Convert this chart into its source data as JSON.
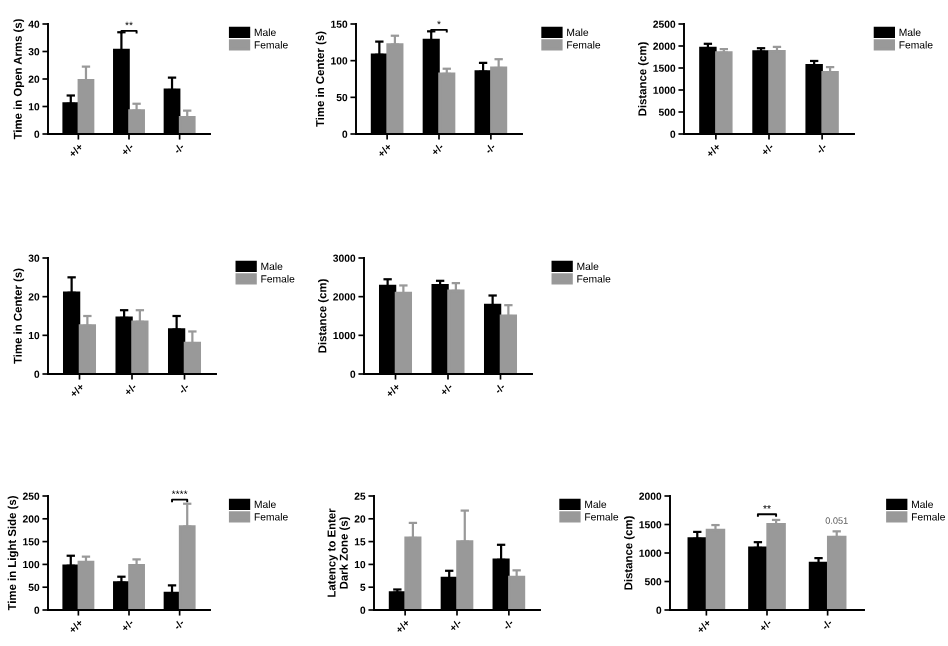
{
  "chart_data": [
    {
      "type": "bar",
      "ylabel": "Time in Open Arms (s)",
      "categories": [
        "+/+",
        "+/-",
        "-/-"
      ],
      "ylim": [
        0,
        40
      ],
      "yticks": [
        0,
        10,
        20,
        30,
        40
      ],
      "legend": "top right",
      "grid": false,
      "annotations": [
        {
          "text": "**",
          "x": "+/-",
          "y": 37.5
        }
      ],
      "series": [
        {
          "name": "Male",
          "color": "#000000",
          "values": [
            11,
            30.5,
            16
          ],
          "errors": [
            [
              11,
              14
            ],
            [
              30.5,
              37
            ],
            [
              16,
              20.5
            ]
          ]
        },
        {
          "name": "Female",
          "color": "#999999",
          "values": [
            19.5,
            8.5,
            6
          ],
          "errors": [
            [
              19.5,
              24.5
            ],
            [
              8.5,
              11
            ],
            [
              6,
              8.5
            ]
          ]
        }
      ]
    },
    {
      "type": "bar",
      "ylabel": "Time in Center (s)",
      "categories": [
        "+/+",
        "+/-",
        "-/-"
      ],
      "ylim": [
        0,
        150
      ],
      "yticks": [
        0,
        50,
        100,
        150
      ],
      "legend": "top right",
      "grid": false,
      "annotations": [
        {
          "text": "*",
          "x": "+/-",
          "y": 142
        }
      ],
      "series": [
        {
          "name": "Male",
          "color": "#000000",
          "values": [
            108,
            128,
            85
          ],
          "errors": [
            [
              108,
              126
            ],
            [
              128,
              140
            ],
            [
              85,
              97
            ]
          ]
        },
        {
          "name": "Female",
          "color": "#999999",
          "values": [
            122,
            82,
            90
          ],
          "errors": [
            [
              122,
              134
            ],
            [
              82,
              89
            ],
            [
              90,
              102
            ]
          ]
        }
      ]
    },
    {
      "type": "bar",
      "ylabel": "Distance (cm)",
      "categories": [
        "+/+",
        "+/-",
        "-/-"
      ],
      "ylim": [
        0,
        2500
      ],
      "yticks": [
        0,
        500,
        1000,
        1500,
        2000,
        2500
      ],
      "legend": "top right",
      "grid": false,
      "series": [
        {
          "name": "Male",
          "color": "#000000",
          "values": [
            1950,
            1870,
            1560
          ],
          "errors": [
            [
              1950,
              2050
            ],
            [
              1870,
              1950
            ],
            [
              1560,
              1660
            ]
          ]
        },
        {
          "name": "Female",
          "color": "#999999",
          "values": [
            1850,
            1880,
            1400
          ],
          "errors": [
            [
              1850,
              1930
            ],
            [
              1880,
              1980
            ],
            [
              1400,
              1520
            ]
          ]
        }
      ]
    },
    {
      "type": "bar",
      "ylabel": "Time in Center (s)",
      "categories": [
        "+/+",
        "+/-",
        "-/-"
      ],
      "ylim": [
        0,
        30
      ],
      "yticks": [
        0,
        10,
        20,
        30
      ],
      "legend": "top right",
      "grid": false,
      "series": [
        {
          "name": "Male",
          "color": "#000000",
          "values": [
            21,
            14.5,
            11.5
          ],
          "errors": [
            [
              21,
              25
            ],
            [
              14.5,
              16.5
            ],
            [
              11.5,
              15
            ]
          ]
        },
        {
          "name": "Female",
          "color": "#999999",
          "values": [
            12.5,
            13.5,
            8
          ],
          "errors": [
            [
              12.5,
              15
            ],
            [
              13.5,
              16.5
            ],
            [
              8,
              11
            ]
          ]
        }
      ]
    },
    {
      "type": "bar",
      "ylabel": "Distance (cm)",
      "categories": [
        "+/+",
        "+/-",
        "-/-"
      ],
      "ylim": [
        0,
        3000
      ],
      "yticks": [
        0,
        1000,
        2000,
        3000
      ],
      "legend": "top right",
      "grid": false,
      "series": [
        {
          "name": "Male",
          "color": "#000000",
          "values": [
            2270,
            2290,
            1780
          ],
          "errors": [
            [
              2270,
              2450
            ],
            [
              2290,
              2410
            ],
            [
              1780,
              2030
            ]
          ]
        },
        {
          "name": "Female",
          "color": "#999999",
          "values": [
            2090,
            2150,
            1500
          ],
          "errors": [
            [
              2090,
              2290
            ],
            [
              2150,
              2350
            ],
            [
              1500,
              1780
            ]
          ]
        }
      ]
    },
    {
      "type": "bar",
      "ylabel": "Time in Light Side (s)",
      "categories": [
        "+/+",
        "+/-",
        "-/-"
      ],
      "ylim": [
        0,
        250
      ],
      "yticks": [
        0,
        50,
        100,
        150,
        200,
        250
      ],
      "legend": "top right",
      "grid": false,
      "annotations": [
        {
          "text": "****",
          "x": "-/-",
          "y": 242
        }
      ],
      "series": [
        {
          "name": "Male",
          "color": "#000000",
          "values": [
            97,
            60,
            37
          ],
          "errors": [
            [
              97,
              119
            ],
            [
              60,
              73
            ],
            [
              37,
              54
            ]
          ]
        },
        {
          "name": "Female",
          "color": "#999999",
          "values": [
            105,
            98,
            183
          ],
          "errors": [
            [
              105,
              117
            ],
            [
              98,
              111
            ],
            [
              183,
              233
            ]
          ]
        }
      ]
    },
    {
      "type": "bar",
      "ylabel": "Latency to Enter\nDark Zone (s)",
      "categories": [
        "+/+",
        "+/-",
        "-/-"
      ],
      "ylim": [
        0,
        25
      ],
      "yticks": [
        0,
        5,
        10,
        15,
        20,
        25
      ],
      "legend": "top right",
      "grid": false,
      "series": [
        {
          "name": "Male",
          "color": "#000000",
          "values": [
            3.8,
            7,
            11
          ],
          "errors": [
            [
              3.8,
              4.5
            ],
            [
              7,
              8.6
            ],
            [
              11,
              14.3
            ]
          ]
        },
        {
          "name": "Female",
          "color": "#999999",
          "values": [
            15.8,
            15,
            7.2
          ],
          "errors": [
            [
              15.8,
              19.1
            ],
            [
              15,
              21.8
            ],
            [
              7.2,
              8.7
            ]
          ]
        }
      ]
    },
    {
      "type": "bar",
      "ylabel": "Distance (cm)",
      "categories": [
        "+/+",
        "+/-",
        "-/-"
      ],
      "ylim": [
        0,
        2000
      ],
      "yticks": [
        0,
        500,
        1000,
        1500,
        2000
      ],
      "legend": "top right",
      "grid": false,
      "annotations": [
        {
          "text": "**",
          "x": "+/-",
          "y": 1680
        },
        "0.051"
      ],
      "series": [
        {
          "name": "Male",
          "color": "#000000",
          "values": [
            1250,
            1090,
            820
          ],
          "errors": [
            [
              1250,
              1370
            ],
            [
              1090,
              1190
            ],
            [
              820,
              910
            ]
          ]
        },
        {
          "name": "Female",
          "color": "#999999",
          "values": [
            1400,
            1500,
            1280
          ],
          "errors": [
            [
              1400,
              1490
            ],
            [
              1500,
              1580
            ],
            [
              1280,
              1380
            ]
          ]
        }
      ]
    }
  ]
}
